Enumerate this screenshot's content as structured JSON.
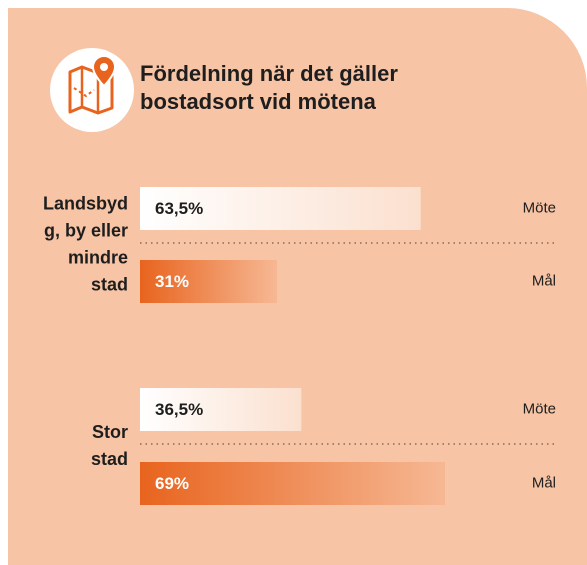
{
  "chart_data": {
    "type": "bar",
    "title": [
      "Fördelning när det gäller",
      "bostadsort vid mötena"
    ],
    "categories": [
      [
        "Landsbyd",
        "g, by eller",
        "mindre",
        "stad"
      ],
      [
        "Stor",
        "stad"
      ]
    ],
    "series": [
      {
        "name": "Möte",
        "color": "#ffffff",
        "values": [
          63.5,
          36.5
        ],
        "value_labels": [
          "63,5%",
          "36,5%"
        ]
      },
      {
        "name": "Mål",
        "color": "#e8641e",
        "values": [
          31,
          69
        ],
        "value_labels": [
          "31%",
          "69%"
        ]
      }
    ],
    "xlim": [
      0,
      100
    ]
  }
}
